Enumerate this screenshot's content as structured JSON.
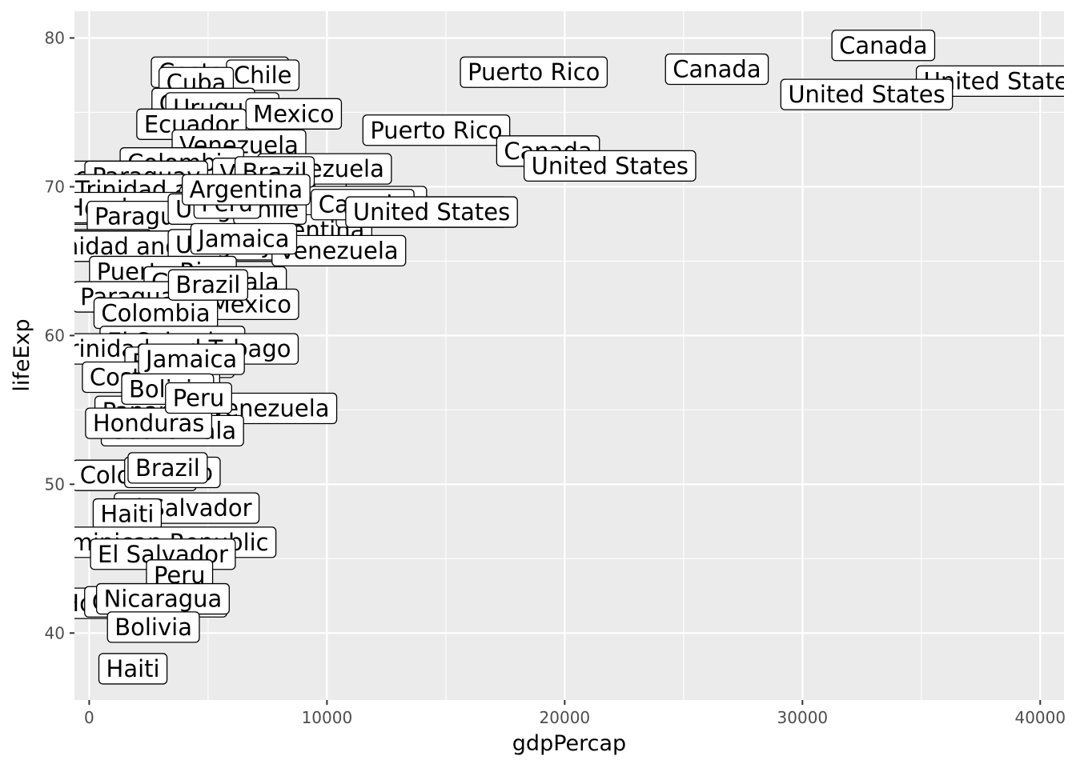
{
  "chart_data": {
    "type": "scatter",
    "geom": "label",
    "xlabel": "gdpPercap",
    "ylabel": "lifeExp",
    "xlim": [
      -620,
      41000
    ],
    "ylim": [
      35.5,
      81.8
    ],
    "x_ticks": [
      0,
      10000,
      20000,
      30000,
      40000
    ],
    "x_tick_labels": [
      "0",
      "10000",
      "20000",
      "30000",
      "40000"
    ],
    "y_ticks": [
      40,
      50,
      60,
      70,
      80
    ],
    "y_tick_labels": [
      "40",
      "50",
      "60",
      "70",
      "80"
    ],
    "grid": true,
    "panel_background": "#ebebeb",
    "grid_color": "#ffffff",
    "points": [
      {
        "label": "Costa Rica",
        "x": 5500,
        "y": 77.7
      },
      {
        "label": "Chile",
        "x": 7300,
        "y": 77.5
      },
      {
        "label": "Cuba",
        "x": 4500,
        "y": 77.0
      },
      {
        "label": "Canada",
        "x": 4800,
        "y": 75.6
      },
      {
        "label": "Uruguay",
        "x": 5600,
        "y": 75.3
      },
      {
        "label": "Mexico",
        "x": 8600,
        "y": 74.9
      },
      {
        "label": "Ecuador",
        "x": 4300,
        "y": 74.2
      },
      {
        "label": "Panama",
        "x": 6000,
        "y": 72.6
      },
      {
        "label": "Venezuela",
        "x": 6300,
        "y": 72.8
      },
      {
        "label": "Colombia",
        "x": 3900,
        "y": 71.6
      },
      {
        "label": "Venezuela",
        "x": 8000,
        "y": 70.9
      },
      {
        "label": "Nicaragua",
        "x": 900,
        "y": 70.7
      },
      {
        "label": "Paraguay",
        "x": 2400,
        "y": 70.7
      },
      {
        "label": "Trinidad and Tobago",
        "x": 4300,
        "y": 69.8
      },
      {
        "label": "Trinidad and Tobago",
        "x": 9000,
        "y": 69.0
      },
      {
        "label": "Dominican Republic",
        "x": 700,
        "y": 68.5
      },
      {
        "label": "Honduras",
        "x": 1400,
        "y": 68.6
      },
      {
        "label": "Paraguay",
        "x": 2500,
        "y": 68.0
      },
      {
        "label": "Uruguay",
        "x": 5700,
        "y": 68.5
      },
      {
        "label": "Argentina",
        "x": 9200,
        "y": 67.1
      },
      {
        "label": "United States",
        "x": 14000,
        "y": 68.3
      },
      {
        "label": "Mexico",
        "x": 600,
        "y": 66.1
      },
      {
        "label": "Paraguay",
        "x": 1200,
        "y": 66.0
      },
      {
        "label": "Trinidad and Tobago",
        "x": 2700,
        "y": 66.0
      },
      {
        "label": "Uruguay",
        "x": 5700,
        "y": 66.1
      },
      {
        "label": "Venezuela",
        "x": 10500,
        "y": 65.7
      },
      {
        "label": "Puerto Rico",
        "x": 3100,
        "y": 64.3
      },
      {
        "label": "Guatemala",
        "x": 5300,
        "y": 63.6
      },
      {
        "label": "Paraguay",
        "x": 1900,
        "y": 62.6
      },
      {
        "label": "Mexico",
        "x": 6800,
        "y": 62.1
      },
      {
        "label": "Colombia",
        "x": 2800,
        "y": 61.5
      },
      {
        "label": "El Salvador",
        "x": 3500,
        "y": 59.6
      },
      {
        "label": "Trinidad and Tobago",
        "x": 3600,
        "y": 59.1
      },
      {
        "label": "Ecuador",
        "x": 3800,
        "y": 58.2
      },
      {
        "label": "Costa Rica",
        "x": 2600,
        "y": 57.2
      },
      {
        "label": "Panama",
        "x": 2500,
        "y": 54.9
      },
      {
        "label": "Venezuela",
        "x": 7600,
        "y": 55.1
      },
      {
        "label": "Guatemala",
        "x": 3500,
        "y": 53.6
      },
      {
        "label": "Honduras",
        "x": 2500,
        "y": 54.1
      },
      {
        "label": "Colombia",
        "x": 1900,
        "y": 50.6
      },
      {
        "label": "Mexico",
        "x": 3500,
        "y": 50.8
      },
      {
        "label": "El Salvador",
        "x": 4100,
        "y": 48.4
      },
      {
        "label": "Haiti",
        "x": 1600,
        "y": 48.0
      },
      {
        "label": "Dominican Republic",
        "x": 2700,
        "y": 46.1
      },
      {
        "label": "El Salvador",
        "x": 3100,
        "y": 45.3
      },
      {
        "label": "Peru",
        "x": 3800,
        "y": 43.9
      },
      {
        "label": "Honduras",
        "x": 1200,
        "y": 42.0
      },
      {
        "label": "Guatemala",
        "x": 2800,
        "y": 42.1
      },
      {
        "label": "Nicaragua",
        "x": 3100,
        "y": 42.3
      },
      {
        "label": "Bolivia",
        "x": 2700,
        "y": 40.4
      },
      {
        "label": "Haiti",
        "x": 1840,
        "y": 37.6
      },
      {
        "label": "Canada",
        "x": 33400,
        "y": 79.5
      },
      {
        "label": "Puerto Rico",
        "x": 18700,
        "y": 77.7
      },
      {
        "label": "Canada",
        "x": 26400,
        "y": 77.9
      },
      {
        "label": "United States",
        "x": 38400,
        "y": 77.1
      },
      {
        "label": "United States",
        "x": 32700,
        "y": 76.2
      },
      {
        "label": "Puerto Rico",
        "x": 14600,
        "y": 73.8
      },
      {
        "label": "Canada",
        "x": 19300,
        "y": 72.4
      },
      {
        "label": "United States",
        "x": 21900,
        "y": 71.4
      },
      {
        "label": "Canada",
        "x": 11500,
        "y": 68.8
      },
      {
        "label": "Venezuela",
        "x": 9900,
        "y": 71.2
      },
      {
        "label": "United States",
        "x": 14400,
        "y": 68.3
      },
      {
        "label": "Brazil",
        "x": 7800,
        "y": 71.0
      },
      {
        "label": "Chile",
        "x": 7600,
        "y": 68.5
      },
      {
        "label": "Jamaica",
        "x": 6500,
        "y": 66.5
      },
      {
        "label": "Peru",
        "x": 5800,
        "y": 68.9
      },
      {
        "label": "Argentina",
        "x": 6600,
        "y": 69.8
      },
      {
        "label": "Brazil",
        "x": 5000,
        "y": 63.4
      },
      {
        "label": "Jamaica",
        "x": 4300,
        "y": 58.4
      },
      {
        "label": "Bolivia",
        "x": 3300,
        "y": 56.4
      },
      {
        "label": "Peru",
        "x": 4600,
        "y": 55.8
      },
      {
        "label": "Brazil",
        "x": 3300,
        "y": 51.1
      }
    ]
  }
}
